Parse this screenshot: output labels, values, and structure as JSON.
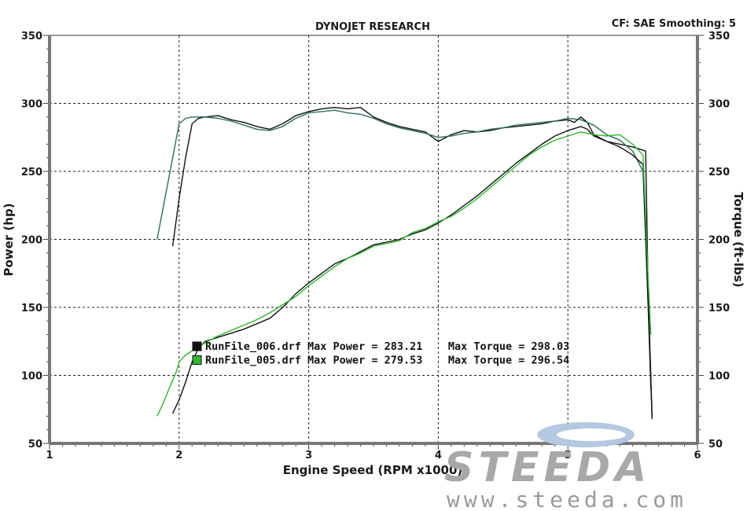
{
  "chart_data": {
    "type": "line",
    "title": "DYNOJET RESEARCH",
    "header_right": "CF: SAE  Smoothing: 5",
    "xlabel": "Engine Speed (RPM x1000)",
    "ylabel_left": "Power (hp)",
    "ylabel_right": "Torque (ft-lbs)",
    "xlim": [
      1,
      6
    ],
    "ylim": [
      50,
      350
    ],
    "x_ticks": [
      "1",
      "2",
      "3",
      "4",
      "5",
      "6"
    ],
    "y_ticks": [
      "50",
      "100",
      "150",
      "200",
      "250",
      "300",
      "350"
    ],
    "grid": true,
    "legend": [
      {
        "swatch": "#111111",
        "text": "RunFile_006.drf Max Power = 283.21    Max Torque = 298.03"
      },
      {
        "swatch": "#2db82d",
        "text": "RunFile_005.drf Max Power = 279.53    Max Torque = 296.54"
      }
    ],
    "series": [
      {
        "name": "RunFile_006.drf Torque",
        "color": "#111111",
        "x": [
          1.95,
          2.0,
          2.05,
          2.1,
          2.15,
          2.2,
          2.3,
          2.4,
          2.5,
          2.6,
          2.7,
          2.8,
          2.9,
          3.0,
          3.1,
          3.2,
          3.3,
          3.4,
          3.5,
          3.6,
          3.7,
          3.8,
          3.9,
          4.0,
          4.1,
          4.2,
          4.3,
          4.4,
          4.5,
          4.6,
          4.7,
          4.8,
          4.9,
          5.0,
          5.05,
          5.1,
          5.15,
          5.2,
          5.3,
          5.4,
          5.5,
          5.6,
          5.62,
          5.65
        ],
        "y": [
          195,
          230,
          260,
          285,
          289,
          290,
          291,
          288,
          286,
          283,
          281,
          285,
          291,
          294,
          296,
          297,
          296,
          297,
          290,
          286,
          283,
          281,
          279,
          272,
          277,
          280,
          279,
          280,
          282,
          283,
          284,
          285,
          287,
          288,
          286,
          290,
          286,
          277,
          272,
          270,
          268,
          265,
          160,
          70
        ]
      },
      {
        "name": "RunFile_005.drf Torque",
        "color": "#2c6e58",
        "x": [
          1.83,
          1.88,
          1.93,
          1.98,
          2.0,
          2.05,
          2.1,
          2.2,
          2.3,
          2.4,
          2.5,
          2.6,
          2.7,
          2.8,
          2.9,
          3.0,
          3.1,
          3.2,
          3.3,
          3.4,
          3.5,
          3.6,
          3.7,
          3.8,
          3.9,
          4.0,
          4.1,
          4.2,
          4.3,
          4.4,
          4.5,
          4.6,
          4.7,
          4.8,
          4.9,
          5.0,
          5.1,
          5.2,
          5.3,
          5.4,
          5.5,
          5.58,
          5.62,
          5.64
        ],
        "y": [
          200,
          225,
          250,
          275,
          285,
          289,
          290,
          290,
          289,
          287,
          284,
          281,
          280,
          283,
          289,
          293,
          294,
          295,
          293,
          292,
          289,
          285,
          282,
          280,
          278,
          275,
          276,
          278,
          279,
          281,
          282,
          284,
          285,
          286,
          287,
          289,
          288,
          284,
          277,
          273,
          265,
          250,
          150,
          90
        ]
      },
      {
        "name": "RunFile_006.drf Power",
        "color": "#111111",
        "x": [
          1.95,
          2.0,
          2.05,
          2.1,
          2.15,
          2.2,
          2.3,
          2.4,
          2.5,
          2.6,
          2.7,
          2.8,
          2.9,
          3.0,
          3.1,
          3.2,
          3.3,
          3.4,
          3.5,
          3.6,
          3.7,
          3.8,
          3.9,
          4.0,
          4.1,
          4.2,
          4.3,
          4.4,
          4.5,
          4.6,
          4.7,
          4.8,
          4.9,
          5.0,
          5.1,
          5.15,
          5.2,
          5.3,
          5.4,
          5.5,
          5.58,
          5.62,
          5.65
        ],
        "y": [
          72,
          82,
          95,
          110,
          120,
          125,
          128,
          131,
          134,
          138,
          142,
          150,
          160,
          168,
          175,
          182,
          186,
          191,
          196,
          198,
          200,
          204,
          207,
          212,
          218,
          225,
          232,
          240,
          248,
          256,
          263,
          270,
          276,
          280,
          283,
          281,
          276,
          272,
          268,
          262,
          255,
          150,
          68
        ]
      },
      {
        "name": "RunFile_005.drf Power",
        "color": "#2db82d",
        "x": [
          1.83,
          1.88,
          1.93,
          1.98,
          2.0,
          2.05,
          2.1,
          2.2,
          2.3,
          2.4,
          2.5,
          2.6,
          2.7,
          2.8,
          2.9,
          3.0,
          3.1,
          3.2,
          3.3,
          3.4,
          3.5,
          3.6,
          3.7,
          3.8,
          3.9,
          4.0,
          4.1,
          4.2,
          4.3,
          4.4,
          4.5,
          4.6,
          4.7,
          4.8,
          4.9,
          5.0,
          5.1,
          5.2,
          5.3,
          5.4,
          5.5,
          5.58,
          5.62,
          5.64
        ],
        "y": [
          70,
          80,
          92,
          103,
          110,
          115,
          118,
          124,
          129,
          133,
          137,
          141,
          146,
          152,
          158,
          166,
          173,
          180,
          186,
          190,
          195,
          197,
          199,
          205,
          208,
          213,
          217,
          223,
          230,
          238,
          246,
          254,
          262,
          268,
          273,
          276,
          279,
          277,
          276,
          277,
          270,
          262,
          170,
          130
        ]
      }
    ]
  },
  "watermark": {
    "brand": "STEEDA",
    "url": "www.steeda.com"
  }
}
